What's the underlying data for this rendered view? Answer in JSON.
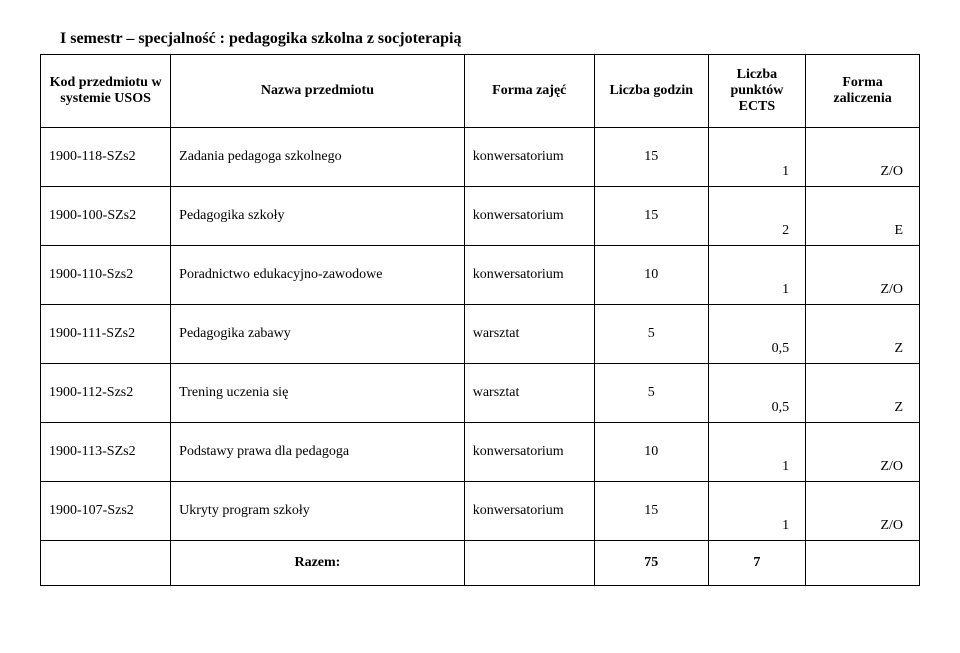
{
  "title": "I semestr – specjalność : pedagogika szkolna z socjoterapią",
  "headers": {
    "code": "Kod przedmiotu w systemie USOS",
    "name": "Nazwa przedmiotu",
    "form": "Forma zajęć",
    "hours": "Liczba godzin",
    "ects": "Liczba punktów ECTS",
    "grade": "Forma zaliczenia"
  },
  "rows": [
    {
      "code": "1900-118-SZs2",
      "name": "Zadania pedagoga szkolnego",
      "form": "konwersatorium",
      "hours": "15",
      "ects": "1",
      "grade": "Z/O"
    },
    {
      "code": "1900-100-SZs2",
      "name": "Pedagogika szkoły",
      "form": "konwersatorium",
      "hours": "15",
      "ects": "2",
      "grade": "E"
    },
    {
      "code": "1900-110-Szs2",
      "name": "Poradnictwo edukacyjno-zawodowe",
      "form": "konwersatorium",
      "hours": "10",
      "ects": "1",
      "grade": "Z/O"
    },
    {
      "code": "1900-111-SZs2",
      "name": "Pedagogika zabawy",
      "form": "warsztat",
      "hours": "5",
      "ects": "0,5",
      "grade": "Z"
    },
    {
      "code": "1900-112-Szs2",
      "name": "Trening uczenia się",
      "form": "warsztat",
      "hours": "5",
      "ects": "0,5",
      "grade": "Z"
    },
    {
      "code": "1900-113-SZs2",
      "name": "Podstawy prawa dla pedagoga",
      "form": "konwersatorium",
      "hours": "10",
      "ects": "1",
      "grade": "Z/O"
    },
    {
      "code": "1900-107-Szs2",
      "name": "Ukryty program szkoły",
      "form": "konwersatorium",
      "hours": "15",
      "ects": "1",
      "grade": "Z/O"
    }
  ],
  "total": {
    "label": "Razem:",
    "hours": "75",
    "ects": "7"
  }
}
